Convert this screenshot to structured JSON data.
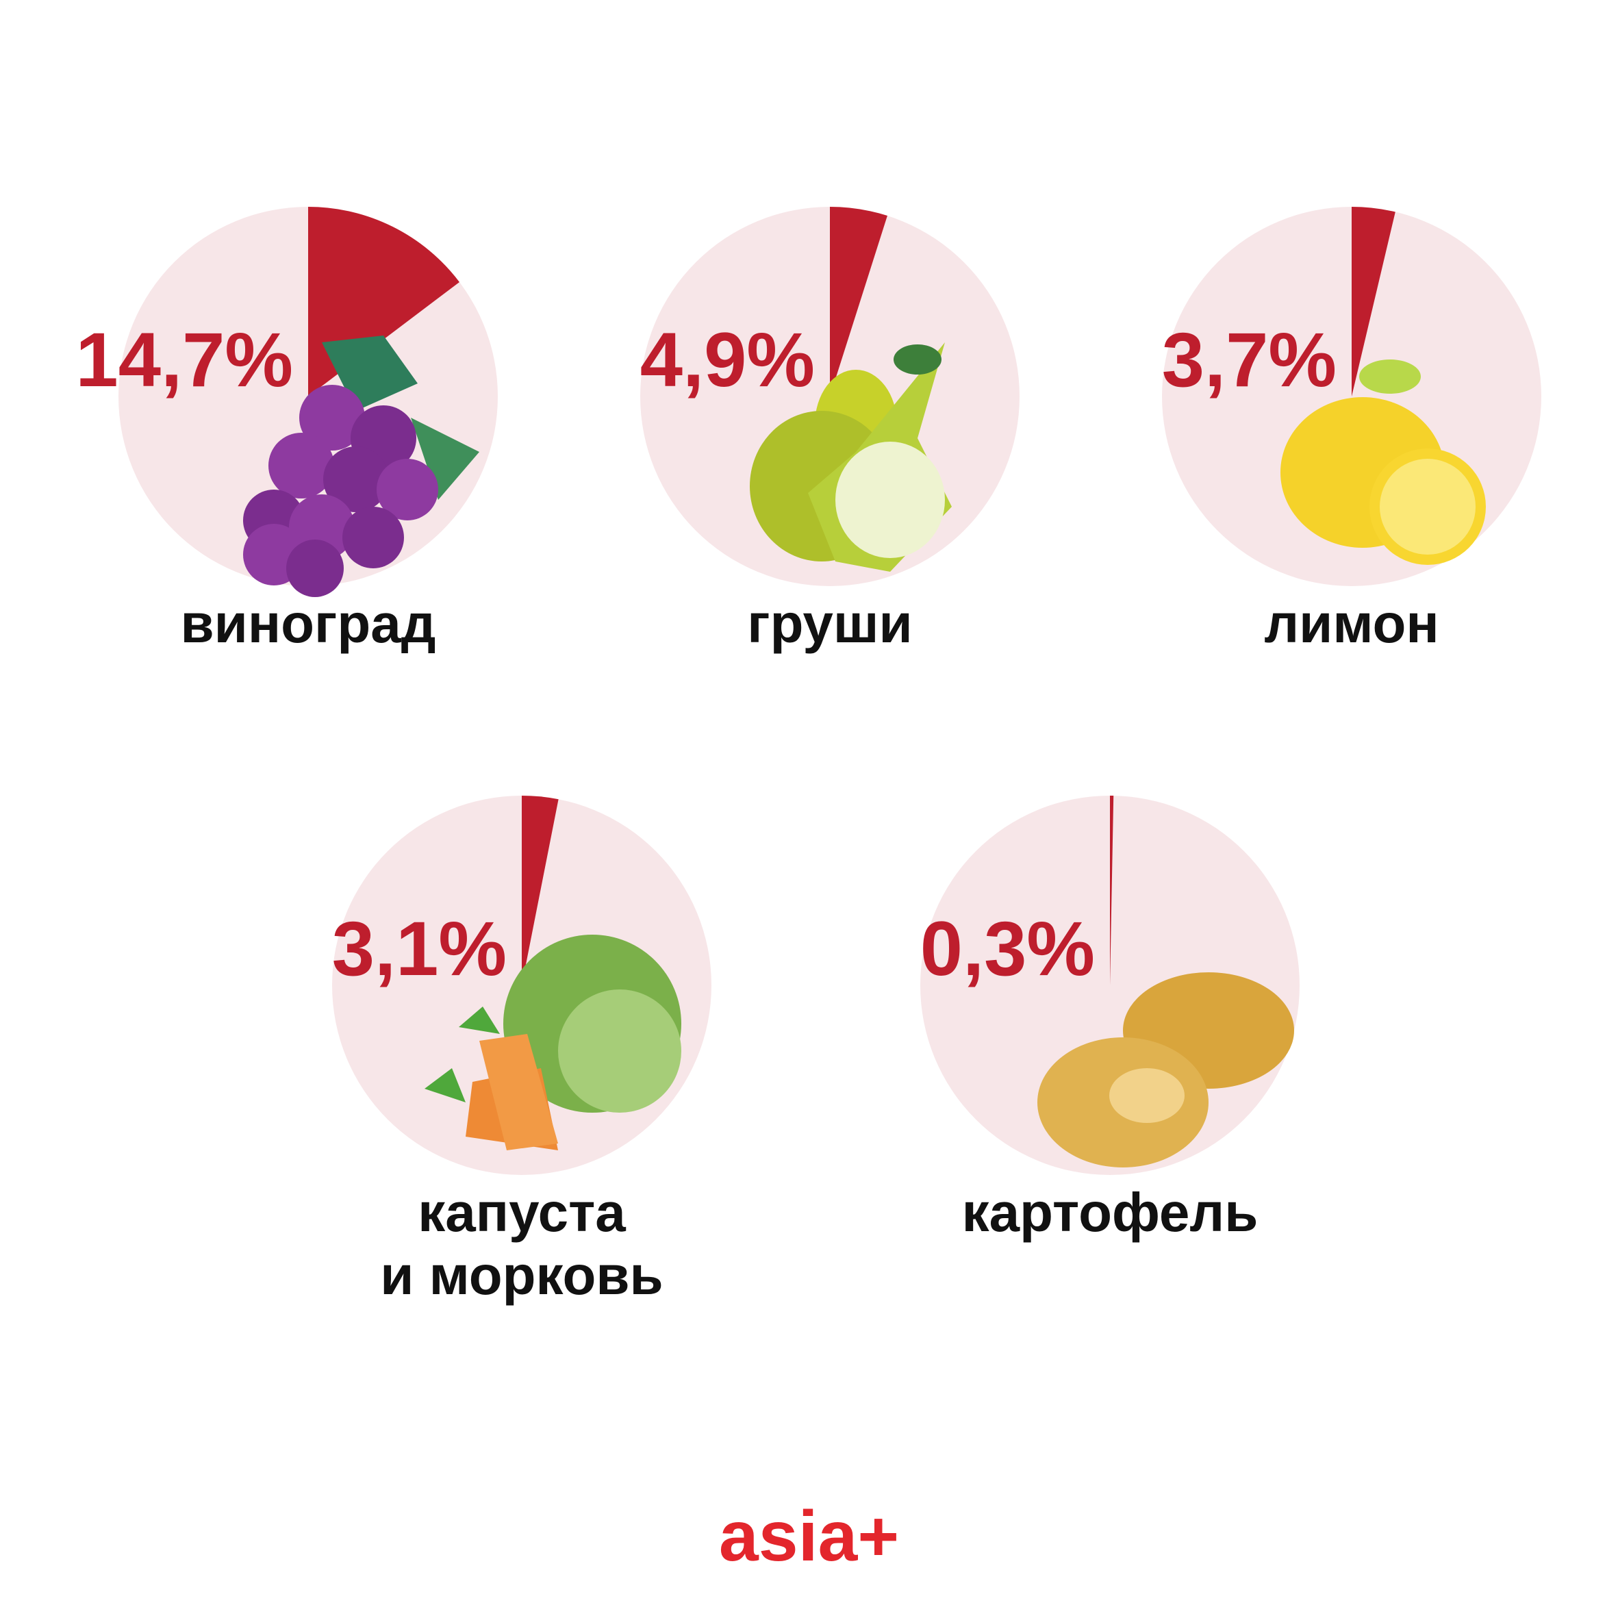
{
  "chart_data": [
    {
      "type": "pie",
      "categories": [
        "виноград"
      ],
      "values": [
        14.7
      ],
      "value_labels": [
        "14,7%"
      ],
      "color": "#be1e2d",
      "background_color": "#f7e6e8"
    },
    {
      "type": "pie",
      "categories": [
        "груши"
      ],
      "values": [
        4.9
      ],
      "value_labels": [
        "4,9%"
      ],
      "color": "#be1e2d",
      "background_color": "#f7e6e8"
    },
    {
      "type": "pie",
      "categories": [
        "лимон"
      ],
      "values": [
        3.7
      ],
      "value_labels": [
        "3,7%"
      ],
      "color": "#be1e2d",
      "background_color": "#f7e6e8"
    },
    {
      "type": "pie",
      "categories": [
        "капуста\nи морковь"
      ],
      "values": [
        3.1
      ],
      "value_labels": [
        "3,1%"
      ],
      "color": "#be1e2d",
      "background_color": "#f7e6e8"
    },
    {
      "type": "pie",
      "categories": [
        "картофель"
      ],
      "values": [
        0.3
      ],
      "value_labels": [
        "0,3%"
      ],
      "color": "#be1e2d",
      "background_color": "#f7e6e8"
    }
  ],
  "footer": {
    "logo": "asia+"
  }
}
